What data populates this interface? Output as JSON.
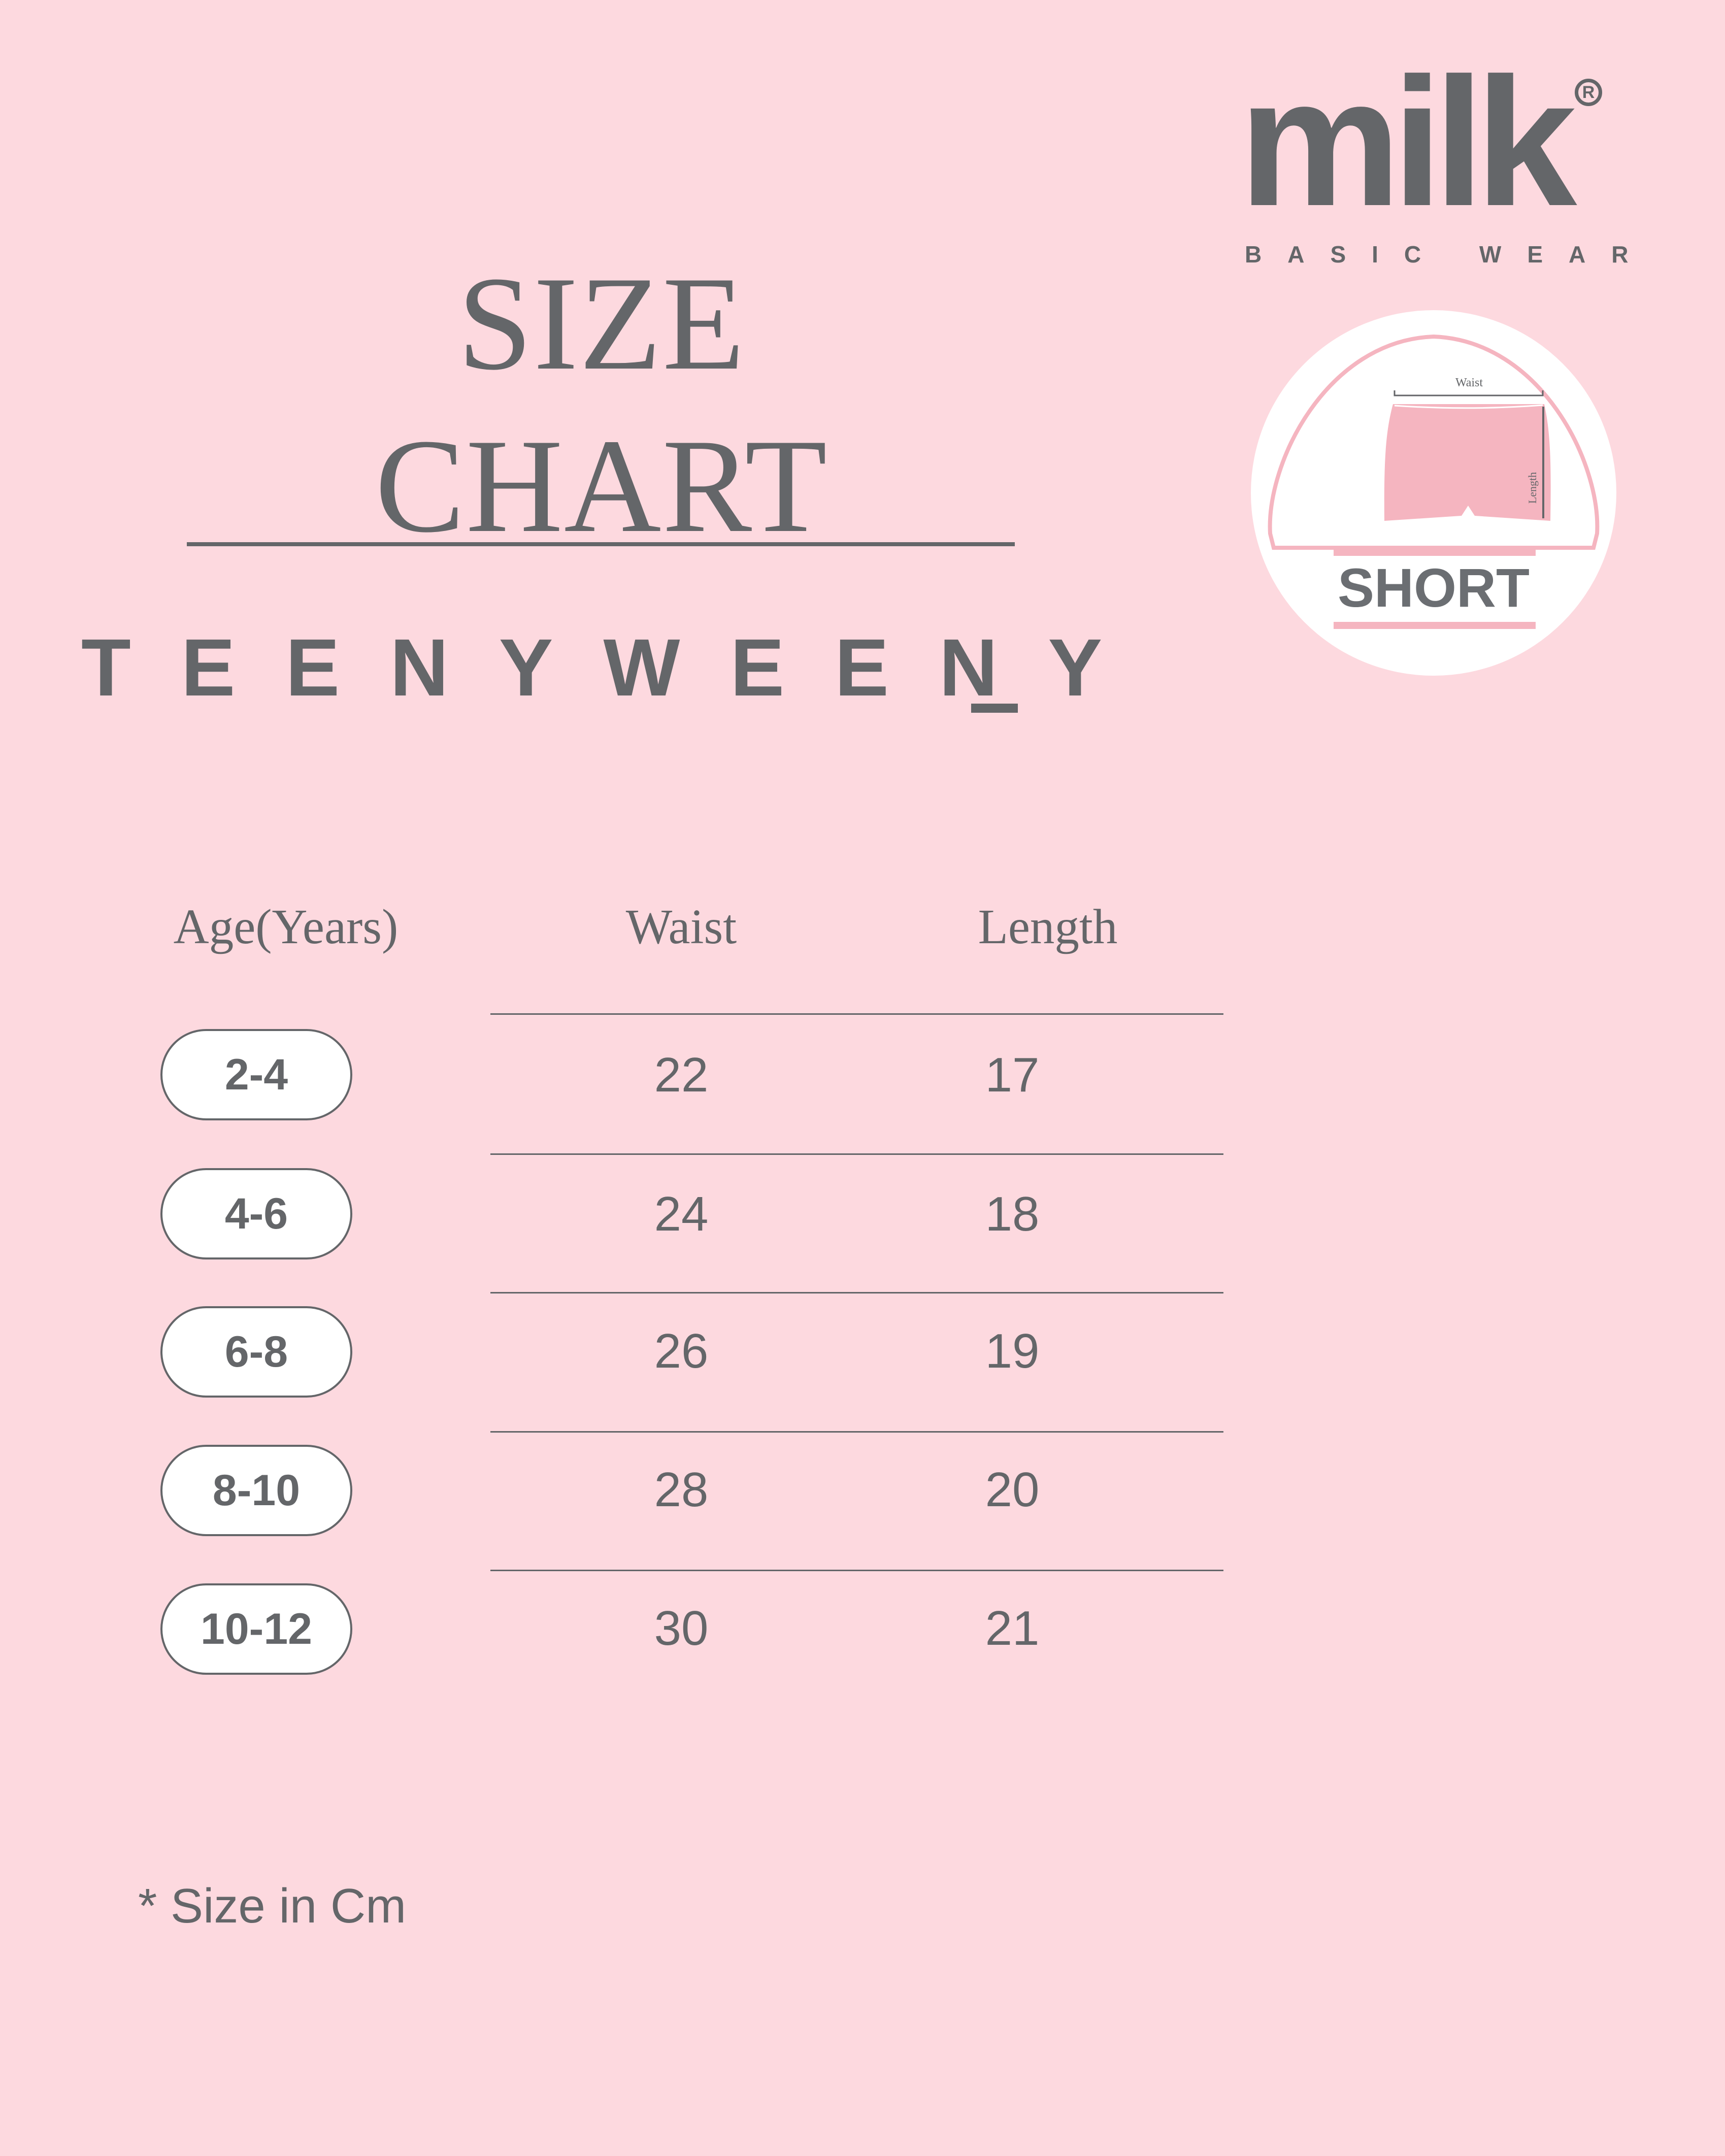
{
  "title": {
    "line1": "SIZE",
    "line2": "CHART"
  },
  "brand_collection": "TEENYWEENY",
  "logo": {
    "name": "milk",
    "registered": "R",
    "tagline": "BASIC WEAR"
  },
  "product": {
    "type": "SHORT",
    "diagram_labels": {
      "waist": "Waist",
      "length": "Length"
    }
  },
  "table": {
    "headers": [
      "Age(Years)",
      "Waist",
      "Length"
    ],
    "rows": [
      {
        "age": "2-4",
        "waist": "22",
        "length": "17"
      },
      {
        "age": "4-6",
        "waist": "24",
        "length": "18"
      },
      {
        "age": "6-8",
        "waist": "26",
        "length": "19"
      },
      {
        "age": "8-10",
        "waist": "28",
        "length": "20"
      },
      {
        "age": "10-12",
        "waist": "30",
        "length": "21"
      }
    ]
  },
  "note": "* Size in Cm",
  "colors": {
    "background": "#fdd9df",
    "text": "#646669",
    "accent_pink": "#f5b5c0"
  }
}
